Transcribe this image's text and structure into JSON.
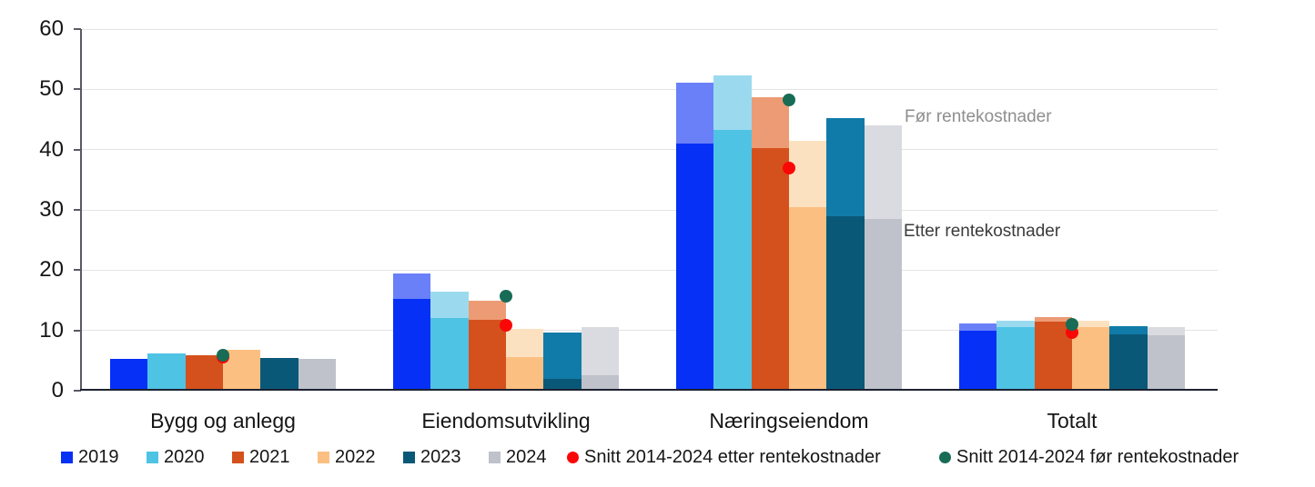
{
  "chart_data": {
    "type": "bar",
    "title": "",
    "ylim": [
      0,
      60
    ],
    "yticks": [
      0,
      10,
      20,
      30,
      40,
      50,
      60
    ],
    "grid": true,
    "legend_position": "bottom",
    "categories": [
      "Bygg og anlegg",
      "Eiendomsutvikling",
      "Næringseiendom",
      "Totalt"
    ],
    "series": [
      {
        "name": "2019",
        "color": "#0630f6",
        "light_color": "#6a80f8",
        "etter": [
          5.3,
          15.3,
          41.0,
          10.0
        ],
        "foer": [
          5.3,
          19.4,
          51.1,
          11.1
        ]
      },
      {
        "name": "2020",
        "color": "#4fc3e4",
        "light_color": "#9bdaee",
        "etter": [
          6.2,
          12.1,
          43.2,
          10.5
        ],
        "foer": [
          6.2,
          16.5,
          52.3,
          11.6
        ]
      },
      {
        "name": "2021",
        "color": "#d4511d",
        "light_color": "#ed9b74",
        "etter": [
          5.9,
          11.7,
          40.3,
          11.5
        ],
        "foer": [
          5.9,
          15.0,
          48.7,
          12.2
        ]
      },
      {
        "name": "2022",
        "color": "#fbbf81",
        "light_color": "#fce1c1",
        "etter": [
          6.8,
          5.6,
          30.5,
          10.5
        ],
        "foer": [
          6.8,
          10.3,
          41.5,
          11.6
        ]
      },
      {
        "name": "2023",
        "color": "#0a5878",
        "light_color": "#107ba8",
        "etter": [
          5.5,
          2.0,
          29.0,
          9.3
        ],
        "foer": [
          5.5,
          9.7,
          45.2,
          10.7
        ]
      },
      {
        "name": "2024",
        "color": "#bfc2cb",
        "light_color": "#d9dbe0",
        "etter": [
          5.3,
          2.6,
          28.5,
          9.2
        ],
        "foer": [
          5.3,
          10.5,
          44.0,
          10.6
        ]
      }
    ],
    "markers": [
      {
        "name": "Snitt 2014-2024 etter rentekostnader",
        "color": "#fa0707",
        "values": [
          5.6,
          10.9,
          36.9,
          9.6
        ]
      },
      {
        "name": "Snitt 2014-2024 før rentekostnader",
        "color": "#186c55",
        "values": [
          5.9,
          15.7,
          48.3,
          11.0
        ]
      }
    ],
    "annotations": [
      {
        "text": "Før rentekostnader",
        "color": "#8e8e8e"
      },
      {
        "text": "Etter rentekostnader",
        "color": "#3b3b3b"
      }
    ],
    "colors": {
      "axis": "#5a5a64",
      "baseline": "#1c2230",
      "gridline": "#e4e4e4",
      "text": "#161616"
    }
  }
}
